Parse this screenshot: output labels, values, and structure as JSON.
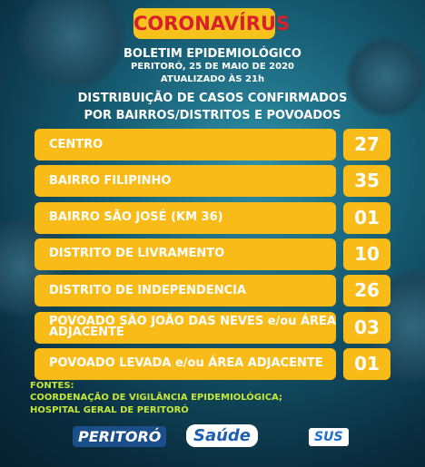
{
  "header": {
    "title_part1": "CORONA",
    "title_part2": "VÍRUS",
    "bulletin": "BOLETIM EPIDEMIOLÓGICO",
    "place_date": "PERITORÓ, 25 DE MAIO DE 2020",
    "updated": "ATUALIZADO ÀS 21h",
    "subtitle_line1": "DISTRIBUIÇÃO DE CASOS CONFIRMADOS",
    "subtitle_line2": "POR BAIRROS/DISTRITOS E POVOADOS"
  },
  "table": {
    "rows": [
      [
        "CENTRO",
        "27"
      ],
      [
        "BAIRRO FILIPINHO",
        "35"
      ],
      [
        "BAIRRO SÃO JOSÉ (KM 36)",
        "01"
      ],
      [
        "DISTRITO DE LIVRAMENTO",
        "10"
      ],
      [
        "DISTRITO DE INDEPENDENCIA",
        "26"
      ],
      [
        "POVOADO SÃO JOÃO DAS NEVES e/ou ÁREA ADJACENTE",
        "03"
      ],
      [
        "POVOADO LEVADA e/ou ÁREA ADJACENTE",
        "01"
      ]
    ]
  },
  "footer": {
    "sources_label": "FONTES:",
    "source1": "COORDENAÇÃO DE VIGILÂNCIA EPIDEMIOLÓGICA;",
    "source2": "HOSPITAL GERAL DE PERITORÓ"
  },
  "logos": {
    "city": "PERITORÓ",
    "health": "Saúde",
    "sus": "SUS"
  }
}
